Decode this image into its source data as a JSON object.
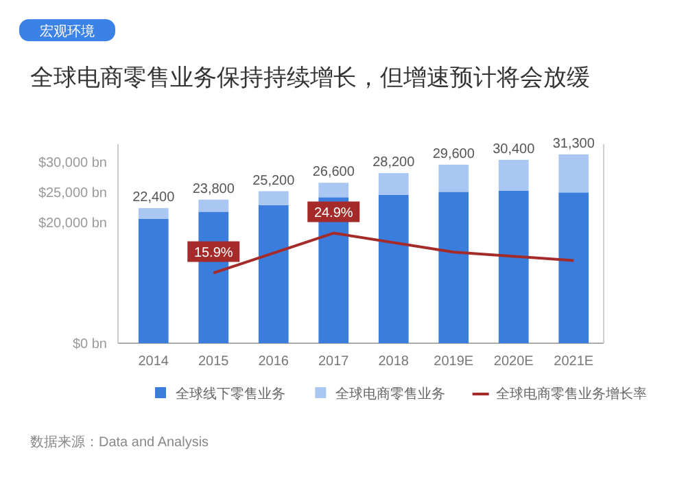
{
  "chart_data": {
    "type": "bar",
    "stacked": true,
    "title": "全球电商零售业务保持持续增长，但增速预计将会放缓",
    "categories": [
      "2014",
      "2015",
      "2016",
      "2017",
      "2018",
      "2019E",
      "2020E",
      "2021E"
    ],
    "series": [
      {
        "name": "全球线下零售业务",
        "color": "#3b7ddd",
        "values": [
          20600,
          21800,
          22900,
          24200,
          24600,
          25100,
          25300,
          25000
        ]
      },
      {
        "name": "全球电商零售业务",
        "color": "#a9c7f2",
        "values": [
          1800,
          2000,
          2300,
          2400,
          3600,
          4500,
          5100,
          6300
        ]
      },
      {
        "name": "全球电商零售业务增长率",
        "type": "line",
        "axis": "y2",
        "color": "#a52a2a",
        "values": [
          null,
          15.9,
          null,
          24.9,
          null,
          20.6,
          null,
          18.7
        ],
        "value_labels": [
          null,
          "15.9%",
          null,
          "24.9%",
          null,
          null,
          null,
          null
        ]
      }
    ],
    "totals": [
      "22,400",
      "23,800",
      "25,200",
      "26,600",
      "28,200",
      "29,600",
      "30,400",
      "31,300"
    ],
    "ylim": [
      0,
      33000
    ],
    "yticks": [
      {
        "value": 0,
        "label": "$0 bn"
      },
      {
        "value": 20000,
        "label": "$20,000 bn"
      },
      {
        "value": 25000,
        "label": "$25,000 bn"
      },
      {
        "value": 30000,
        "label": "$30,000 bn"
      }
    ],
    "y2lim": [
      0,
      45
    ],
    "legend": "bottom",
    "annotations": [
      "宏观环境",
      "数据来源：Data and Analysis"
    ]
  }
}
